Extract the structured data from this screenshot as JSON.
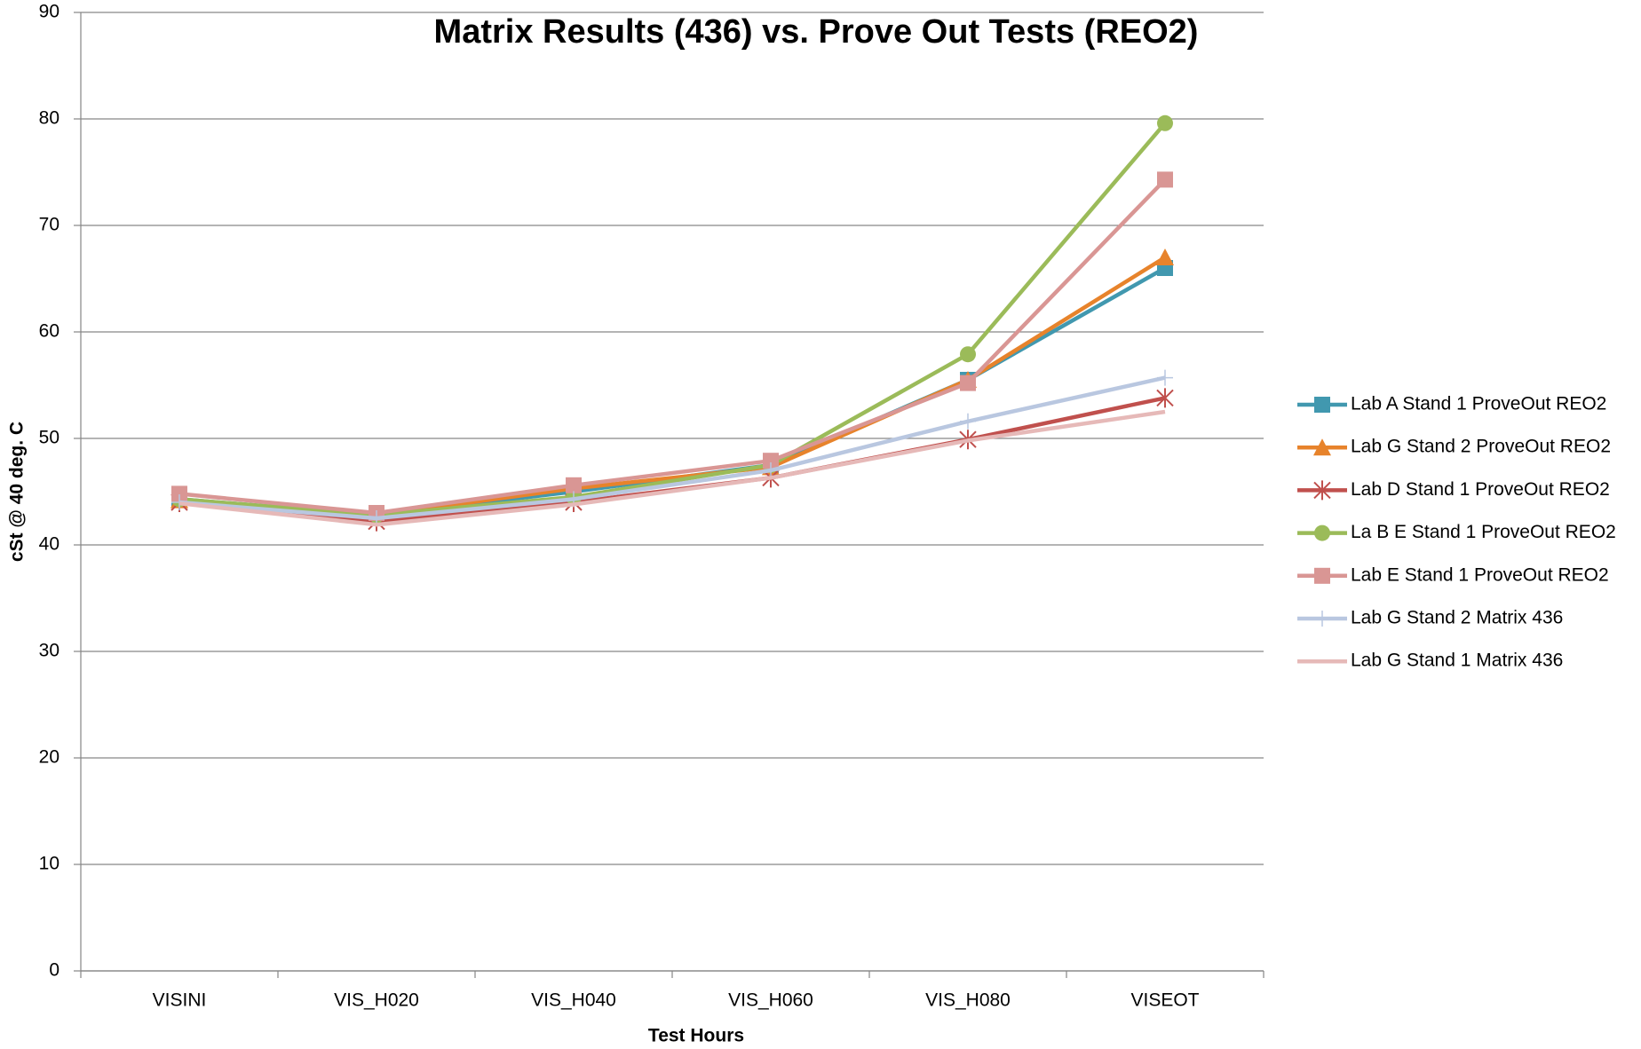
{
  "chart_data": {
    "type": "line",
    "title": "Matrix Results (436) vs. Prove Out Tests (REO2)",
    "xlabel": "Test Hours",
    "ylabel": "cSt @ 40 deg. C",
    "categories": [
      "VISINI",
      "VIS_H020",
      "VIS_H040",
      "VIS_H060",
      "VIS_H080",
      "VISEOT"
    ],
    "ylim": [
      0,
      90
    ],
    "yticks": [
      0,
      10,
      20,
      30,
      40,
      50,
      60,
      70,
      80,
      90
    ],
    "grid": true,
    "legend": "right",
    "series": [
      {
        "name": "Lab A Stand 1 ProveOut REO2",
        "color": "#4198af",
        "marker": "square",
        "values": [
          44.3,
          42.8,
          45,
          47.5,
          55.5,
          66
        ]
      },
      {
        "name": "Lab G Stand 2 ProveOut REO2",
        "color": "#e7832b",
        "marker": "triangle",
        "values": [
          44.2,
          42.8,
          45.3,
          47.3,
          55.5,
          67
        ]
      },
      {
        "name": "Lab D Stand 1 ProveOut REO2",
        "color": "#c0504d",
        "marker": "star",
        "values": [
          44,
          42.2,
          44,
          46.3,
          49.9,
          53.8
        ]
      },
      {
        "name": "La B E Stand 1 ProveOut REO2",
        "color": "#9bbb59",
        "marker": "circle",
        "values": [
          44.3,
          42.8,
          44.5,
          47.5,
          57.9,
          79.6
        ]
      },
      {
        "name": "Lab E Stand 1 ProveOut REO2",
        "color": "#d99694",
        "marker": "square",
        "values": [
          44.8,
          43,
          45.6,
          47.9,
          55.2,
          74.3
        ]
      },
      {
        "name": "Lab G Stand 2 Matrix 436",
        "color": "#b9c7e0",
        "marker": "plus",
        "values": [
          44,
          42.5,
          44.3,
          47,
          51.6,
          55.7
        ]
      },
      {
        "name": "Lab G Stand 1 Matrix 436",
        "color": "#e6b9b8",
        "marker": "none",
        "values": [
          43.9,
          41.9,
          43.8,
          46.3,
          49.8,
          52.5
        ]
      }
    ]
  }
}
